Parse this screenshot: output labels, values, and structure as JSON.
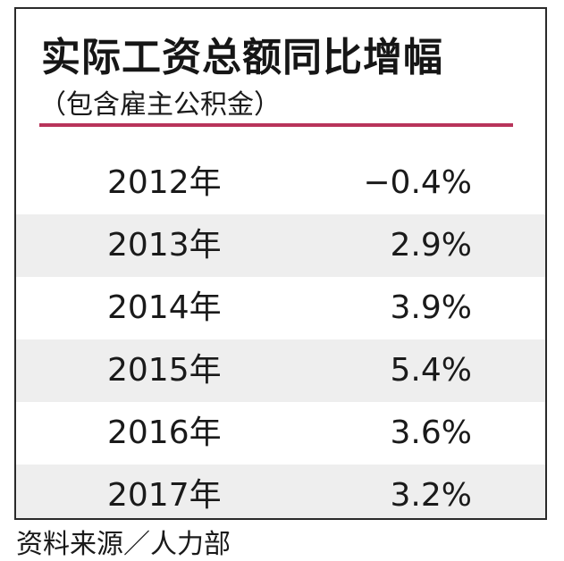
{
  "chart_data": {
    "type": "table",
    "title": "实际工资总额同比增幅",
    "subtitle": "（包含雇主公积金）",
    "categories": [
      "2012年",
      "2013年",
      "2014年",
      "2015年",
      "2016年",
      "2017年"
    ],
    "value_labels": [
      "−0.4%",
      "2.9%",
      "3.9%",
      "5.4%",
      "3.6%",
      "3.2%"
    ],
    "values": [
      -0.4,
      2.9,
      3.9,
      5.4,
      3.6,
      3.2
    ],
    "unit": "%",
    "source": "资料来源／人力部"
  },
  "colors": {
    "accent_rule": "#b8345a",
    "row_shade": "#eeeeee",
    "text": "#1a1a1a",
    "border": "#2a2a2a"
  }
}
